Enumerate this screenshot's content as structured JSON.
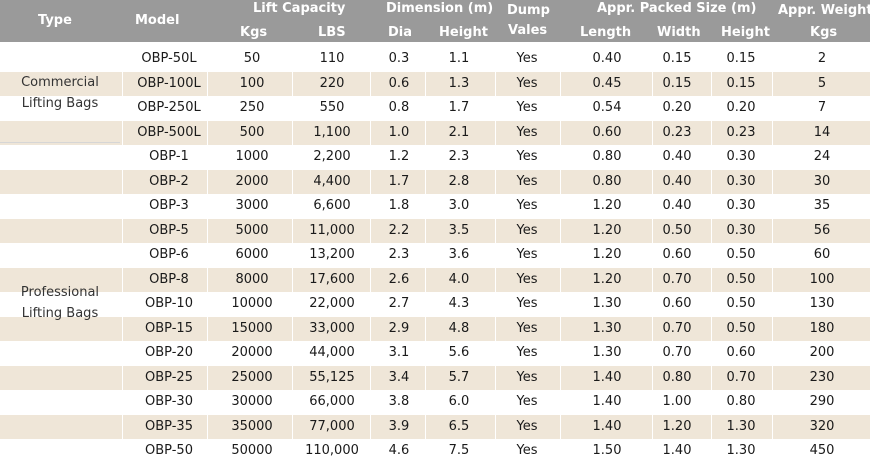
{
  "header": {
    "type": "Type",
    "model": "Model",
    "lift_capacity": "Lift Capacity",
    "kgs": "Kgs",
    "lbs": "LBS",
    "dimension": "Dimension (m)",
    "dia": "Dia",
    "height": "Height",
    "dump_line1": "Dump",
    "dump_line2": "Vales",
    "packed_size": "Appr. Packed Size (m)",
    "length": "Length",
    "width": "Width",
    "packed_height": "Height",
    "weight": "Appr. Weight",
    "weight_unit": "Kgs"
  },
  "types": {
    "commercial_line1": "Commercial",
    "commercial_line2": "Lifting Bags",
    "professional_line1": "Professional",
    "professional_line2": "Lifting Bags"
  },
  "rows": [
    [
      "OBP-50L",
      "50",
      "110",
      "0.3",
      "1.1",
      "Yes",
      "0.40",
      "0.15",
      "0.15",
      "2"
    ],
    [
      "OBP-100L",
      "100",
      "220",
      "0.6",
      "1.3",
      "Yes",
      "0.45",
      "0.15",
      "0.15",
      "5"
    ],
    [
      "OBP-250L",
      "250",
      "550",
      "0.8",
      "1.7",
      "Yes",
      "0.54",
      "0.20",
      "0.20",
      "7"
    ],
    [
      "OBP-500L",
      "500",
      "1,100",
      "1.0",
      "2.1",
      "Yes",
      "0.60",
      "0.23",
      "0.23",
      "14"
    ],
    [
      "OBP-1",
      "1000",
      "2,200",
      "1.2",
      "2.3",
      "Yes",
      "0.80",
      "0.40",
      "0.30",
      "24"
    ],
    [
      "OBP-2",
      "2000",
      "4,400",
      "1.7",
      "2.8",
      "Yes",
      "0.80",
      "0.40",
      "0.30",
      "30"
    ],
    [
      "OBP-3",
      "3000",
      "6,600",
      "1.8",
      "3.0",
      "Yes",
      "1.20",
      "0.40",
      "0.30",
      "35"
    ],
    [
      "OBP-5",
      "5000",
      "11,000",
      "2.2",
      "3.5",
      "Yes",
      "1.20",
      "0.50",
      "0.30",
      "56"
    ],
    [
      "OBP-6",
      "6000",
      "13,200",
      "2.3",
      "3.6",
      "Yes",
      "1.20",
      "0.60",
      "0.50",
      "60"
    ],
    [
      "OBP-8",
      "8000",
      "17,600",
      "2.6",
      "4.0",
      "Yes",
      "1.20",
      "0.70",
      "0.50",
      "100"
    ],
    [
      "OBP-10",
      "10000",
      "22,000",
      "2.7",
      "4.3",
      "Yes",
      "1.30",
      "0.60",
      "0.50",
      "130"
    ],
    [
      "OBP-15",
      "15000",
      "33,000",
      "2.9",
      "4.8",
      "Yes",
      "1.30",
      "0.70",
      "0.50",
      "180"
    ],
    [
      "OBP-20",
      "20000",
      "44,000",
      "3.1",
      "5.6",
      "Yes",
      "1.30",
      "0.70",
      "0.60",
      "200"
    ],
    [
      "OBP-25",
      "25000",
      "55,125",
      "3.4",
      "5.7",
      "Yes",
      "1.40",
      "0.80",
      "0.70",
      "230"
    ],
    [
      "OBP-30",
      "30000",
      "66,000",
      "3.8",
      "6.0",
      "Yes",
      "1.40",
      "1.00",
      "0.80",
      "290"
    ],
    [
      "OBP-35",
      "35000",
      "77,000",
      "3.9",
      "6.5",
      "Yes",
      "1.40",
      "1.20",
      "1.30",
      "320"
    ],
    [
      "OBP-50",
      "50000",
      "110,000",
      "4.6",
      "7.5",
      "Yes",
      "1.50",
      "1.40",
      "1.30",
      "450"
    ]
  ],
  "colors": {
    "header_bg": "#9a9a9a",
    "header_text": "#ffffff",
    "row_shade": "#efe6d8",
    "row_plain": "#ffffff",
    "cell_text": "#1a1a1a"
  }
}
